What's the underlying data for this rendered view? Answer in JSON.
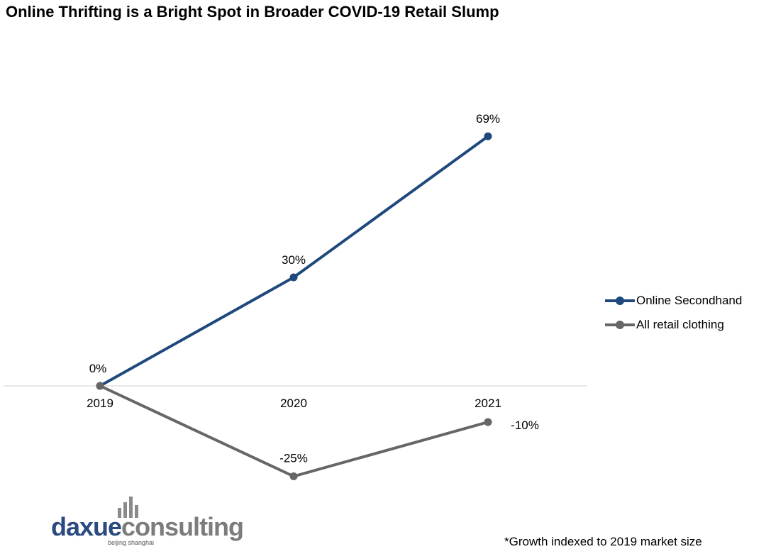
{
  "chart_data": {
    "type": "line",
    "title": "Online Thrifting is a Bright Spot in Broader COVID-19 Retail Slump",
    "categories": [
      "2019",
      "2020",
      "2021"
    ],
    "series": [
      {
        "name": "Online Secondhand",
        "values": [
          0,
          30,
          69
        ],
        "labels": [
          "0%",
          "30%",
          "69%"
        ],
        "color": "#1f497d"
      },
      {
        "name": "All retail clothing",
        "values": [
          0,
          -25,
          -10
        ],
        "labels": [
          "",
          "-25%",
          "-10%"
        ],
        "color": "#666666"
      }
    ],
    "ylim": [
      -35,
      104
    ],
    "xlabel": "",
    "ylabel": "",
    "grid": false,
    "legend": "right",
    "footnote": "*Growth indexed  to 2019 market size"
  },
  "brand": {
    "part1": "daxue",
    "part2": "consulting",
    "tagline": "beijing shanghai",
    "accent": "#2b4a7f",
    "gray": "#7c7c7c"
  }
}
